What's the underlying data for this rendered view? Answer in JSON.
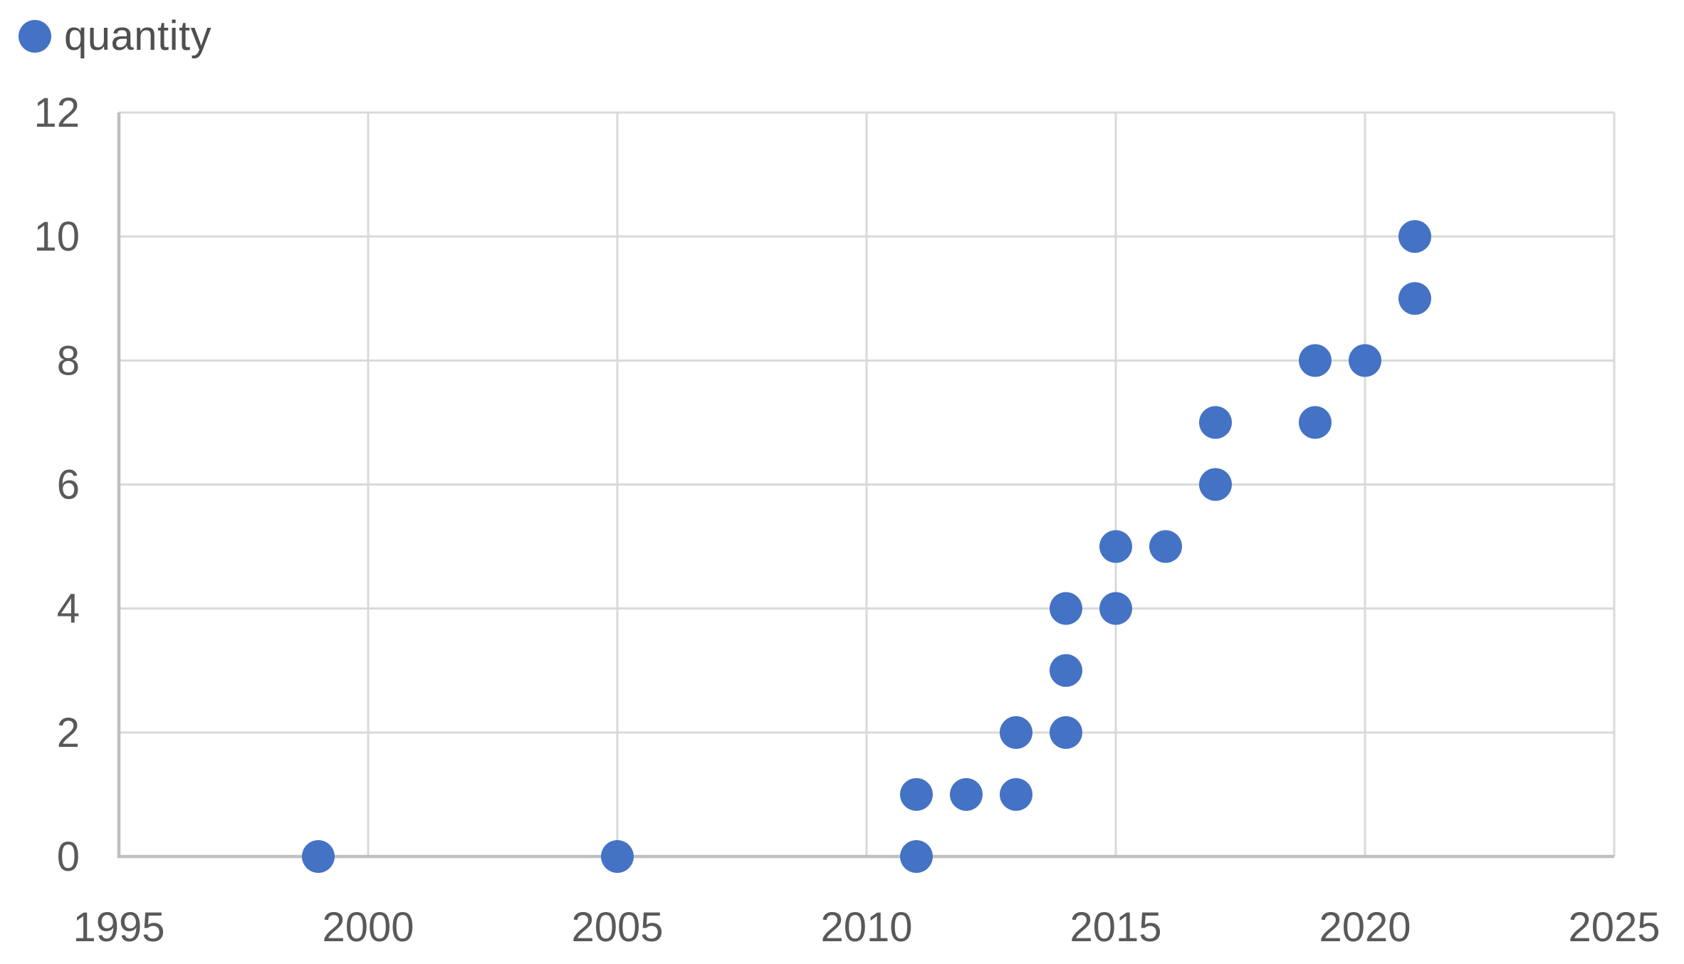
{
  "legend": {
    "label": "quantity",
    "position": "top-left"
  },
  "colors": {
    "point": "#4472C4",
    "gridline": "#D9D9D9",
    "axis_line": "#BFBFBF",
    "tick_label": "#595959",
    "legend_label": "#4F4F4F",
    "background": "#FFFFFF"
  },
  "chart_data": {
    "type": "scatter",
    "title": "",
    "xlabel": "",
    "ylabel": "",
    "grid": true,
    "legend_entries": [
      "quantity"
    ],
    "legend_position": "top-left",
    "xlim": [
      1995,
      2025
    ],
    "ylim": [
      0,
      12
    ],
    "x_ticks": [
      1995,
      2000,
      2005,
      2010,
      2015,
      2020,
      2025
    ],
    "y_ticks": [
      0,
      2,
      4,
      6,
      8,
      10,
      12
    ],
    "series": [
      {
        "name": "quantity",
        "points": [
          [
            1999,
            0
          ],
          [
            2005,
            0
          ],
          [
            2011,
            0
          ],
          [
            2011,
            1
          ],
          [
            2012,
            1
          ],
          [
            2013,
            1
          ],
          [
            2013,
            2
          ],
          [
            2014,
            2
          ],
          [
            2014,
            3
          ],
          [
            2014,
            4
          ],
          [
            2015,
            4
          ],
          [
            2015,
            5
          ],
          [
            2016,
            5
          ],
          [
            2017,
            6
          ],
          [
            2017,
            7
          ],
          [
            2019,
            7
          ],
          [
            2019,
            8
          ],
          [
            2020,
            8
          ],
          [
            2021,
            9
          ],
          [
            2021,
            10
          ]
        ]
      }
    ]
  }
}
